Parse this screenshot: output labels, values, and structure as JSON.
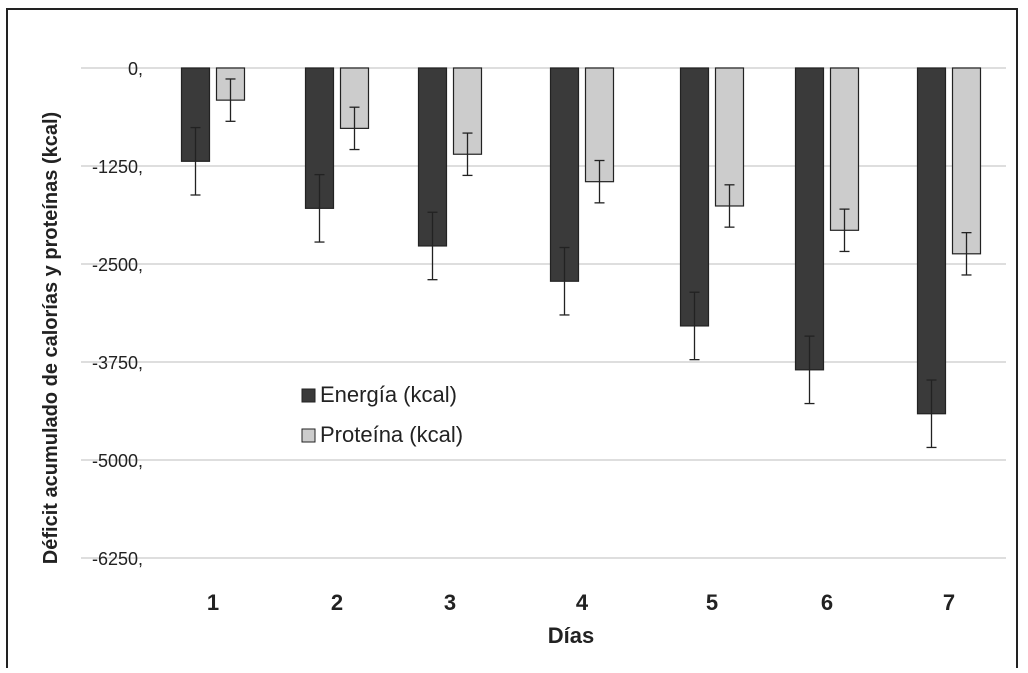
{
  "chart_data": {
    "type": "bar",
    "title": "",
    "xlabel": "Días",
    "ylabel": "Déficit acumulado de calorías y proteínas (kcal)",
    "categories": [
      "1",
      "2",
      "3",
      "4",
      "5",
      "6",
      "7"
    ],
    "ylim": [
      -6875,
      0
    ],
    "yticks": [
      0,
      -1250,
      -2500,
      -3750,
      -5000,
      -6250
    ],
    "ytick_labels": [
      "0,",
      "-1250,",
      "-2500,",
      "-3750,",
      "-5000,",
      "-6250,"
    ],
    "grid": true,
    "legend_position": "center-left",
    "series": [
      {
        "name": "Energía (kcal)",
        "color": "#3a3a3a",
        "values": [
          -1190,
          -1790,
          -2270,
          -2720,
          -3290,
          -3850,
          -4410
        ],
        "error": [
          430,
          430,
          430,
          430,
          430,
          430,
          430
        ]
      },
      {
        "name": "Proteína (kcal)",
        "color": "#cccccc",
        "values": [
          -410,
          -770,
          -1100,
          -1450,
          -1760,
          -2070,
          -2370
        ],
        "error": [
          270,
          270,
          270,
          270,
          270,
          270,
          270
        ]
      }
    ]
  }
}
